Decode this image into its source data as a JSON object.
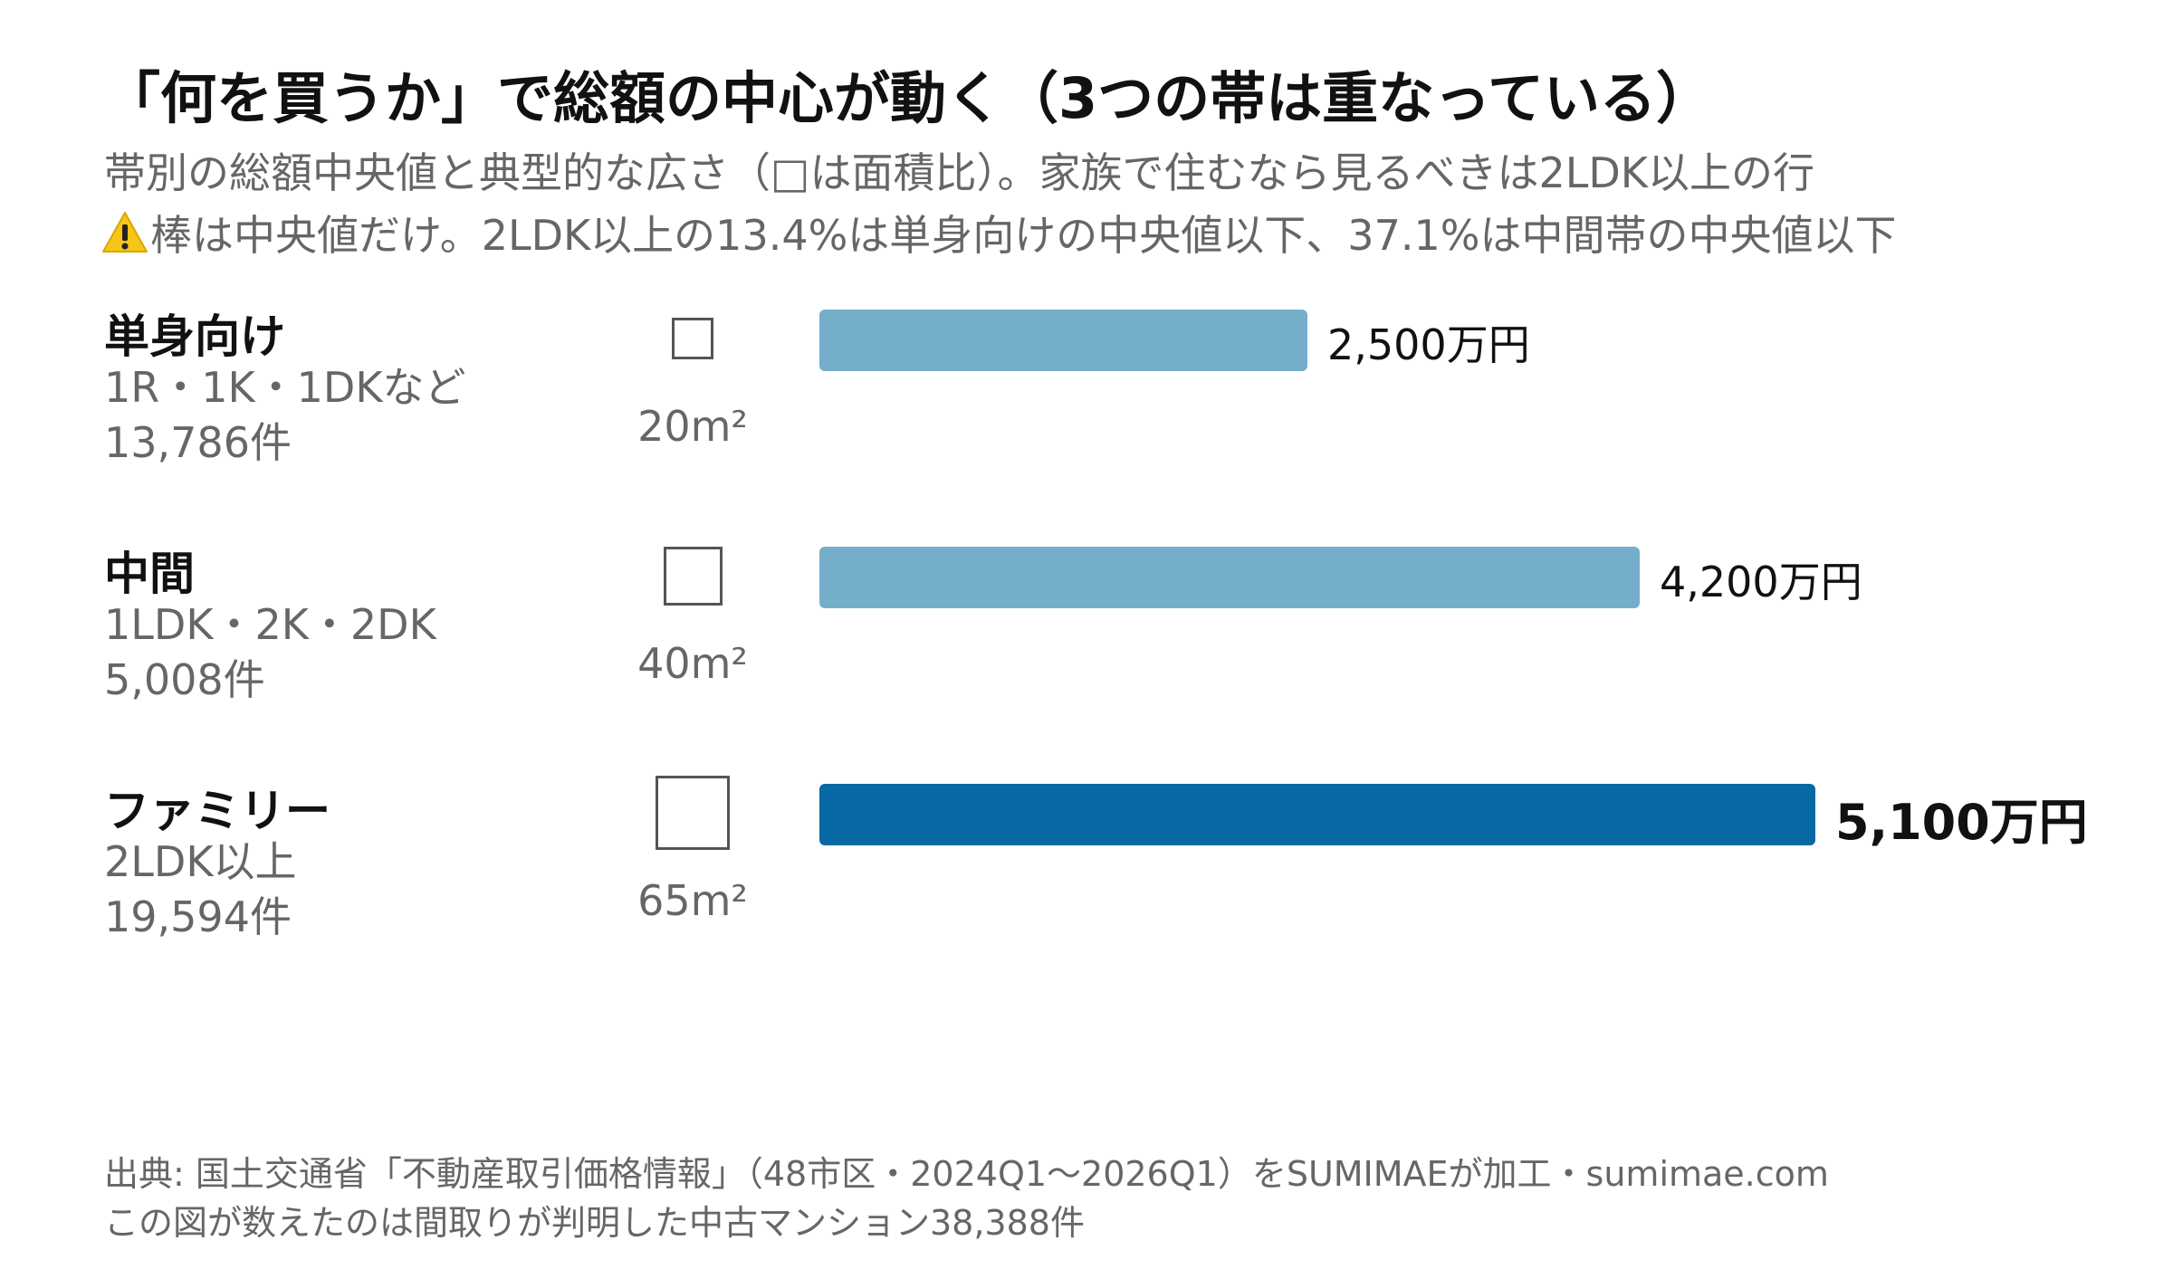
{
  "title": "「何を買うか」で総額の中心が動く（3つの帯は重なっている）",
  "subtitle": "帯別の総額中央値と典型的な広さ（□は面積比）。家族で住むなら見るべきは2LDK以上の行",
  "warning": {
    "icon": "warning-icon",
    "text": "棒は中央値だけ。2LDK以上の13.4%は単身向けの中央値以下、37.1%は中間帯の中央値以下"
  },
  "colors": {
    "bar_default": "#75aecb",
    "bar_highlight": "#0769a4"
  },
  "chart_data": {
    "type": "bar",
    "orientation": "horizontal",
    "categories": [
      "単身向け",
      "中間",
      "ファミリー"
    ],
    "descriptions": [
      "1R・1K・1DKなど",
      "1LDK・2K・2DK",
      "2LDK以上"
    ],
    "counts": [
      "13,786件",
      "5,008件",
      "19,594件"
    ],
    "areas": [
      20,
      40,
      65
    ],
    "area_labels": [
      "20m²",
      "40m²",
      "65m²"
    ],
    "values": [
      2500,
      4200,
      5100
    ],
    "value_labels": [
      "2,500万円",
      "4,200万円",
      "5,100万円"
    ],
    "highlight_index": 2,
    "xlim": [
      0,
      5100
    ],
    "grid": false,
    "legend": false
  },
  "source": {
    "line1": "出典: 国土交通省「不動産取引価格情報」（48市区・2024Q1〜2026Q1）をSUMIMAEが加工・sumimae.com",
    "line2": "この図が数えたのは間取りが判明した中古マンション38,388件"
  }
}
